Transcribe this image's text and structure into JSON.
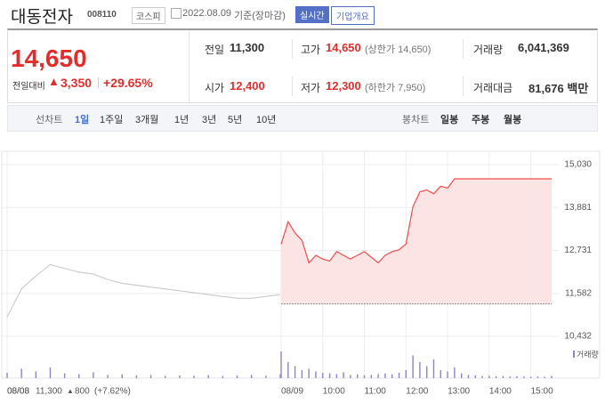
{
  "header": {
    "title": "대동전자",
    "code": "008110",
    "market": "코스피",
    "date": "2022.08.09",
    "basis": "기준(장마감)",
    "realtime": "실시간",
    "company": "기업개요"
  },
  "summary": {
    "price": "14,650",
    "change_label": "전일대비",
    "change": "3,350",
    "rate": "+29.65%",
    "stats": [
      {
        "label": "전일",
        "value": "11,300"
      },
      {
        "label": "고가",
        "value": "14,650",
        "note": "(상한가 14,650)"
      },
      {
        "label": "거래량",
        "value": "6,041,369"
      },
      {
        "label": "시가",
        "value": "12,400"
      },
      {
        "label": "저가",
        "value": "12,300",
        "note": "(하한가 7,950)"
      },
      {
        "label": "거래대금",
        "value": "81,676 백만"
      }
    ]
  },
  "tabs": {
    "line_label": "선차트",
    "line": [
      "1일",
      "1주일",
      "3개월",
      "1년",
      "3년",
      "5년",
      "10년"
    ],
    "candle_label": "봉차트",
    "candle": [
      "일봉",
      "주봉",
      "월봉"
    ]
  },
  "chart_data": {
    "type": "line",
    "categories": [
      "08/08",
      null,
      null,
      null,
      null,
      null,
      null,
      null,
      null,
      null,
      null,
      null,
      null,
      null,
      null,
      null,
      null,
      null,
      null,
      null,
      "08/09",
      null,
      null,
      null,
      null,
      null,
      "10:00",
      null,
      null,
      null,
      null,
      null,
      "11:00",
      null,
      null,
      null,
      null,
      null,
      "12:00",
      null,
      null,
      null,
      null,
      null,
      "13:00",
      null,
      null,
      null,
      null,
      null,
      "14:00",
      null,
      null,
      null,
      null,
      null,
      "15:00",
      null,
      null,
      null
    ],
    "series": [
      {
        "color": "#c4c4c4",
        "values": [
          10950,
          11700,
          12050,
          12350,
          12250,
          12150,
          12100,
          11950,
          11850,
          11800,
          11750,
          11700,
          11650,
          11600,
          11550,
          11500,
          11450,
          11450,
          11500,
          11550,
          null,
          null,
          null,
          null,
          null,
          null,
          null,
          null,
          null,
          null,
          null,
          null,
          null,
          null,
          null,
          null,
          null,
          null,
          null,
          null,
          null,
          null,
          null,
          null,
          null,
          null,
          null,
          null,
          null,
          null,
          null,
          null,
          null,
          null,
          null,
          null,
          null,
          null,
          null,
          null
        ]
      },
      {
        "color": "#f04c4c",
        "values": [
          null,
          null,
          null,
          null,
          null,
          null,
          null,
          null,
          null,
          null,
          null,
          null,
          null,
          null,
          null,
          null,
          null,
          null,
          null,
          null,
          12900,
          13500,
          13200,
          13000,
          12400,
          12600,
          12500,
          12450,
          12700,
          12600,
          12500,
          12600,
          12700,
          12550,
          12400,
          12600,
          12700,
          12750,
          12900,
          13900,
          14300,
          14350,
          14250,
          14450,
          14400,
          14650,
          14650,
          14650,
          14650,
          14650,
          14650,
          14650,
          14650,
          14650,
          14650,
          14650,
          14650,
          14650,
          14650,
          14650
        ]
      }
    ],
    "baseline": 11300,
    "ylim": [
      10432,
      15030
    ],
    "yticks": [
      {
        "value": 10432,
        "label": "10,432"
      },
      {
        "value": 11582,
        "label": "11,582"
      },
      {
        "value": 12731,
        "label": "12,731"
      },
      {
        "value": 13881,
        "label": "13,881"
      },
      {
        "value": 15030,
        "label": "15,030"
      }
    ],
    "volume": {
      "name": "거래량",
      "color": "#8e83c9",
      "ylim": [
        0,
        100
      ],
      "values": [
        20,
        35,
        25,
        40,
        18,
        15,
        22,
        12,
        14,
        10,
        12,
        8,
        10,
        9,
        11,
        8,
        10,
        12,
        9,
        14,
        100,
        60,
        45,
        30,
        35,
        25,
        20,
        18,
        15,
        22,
        12,
        14,
        10,
        12,
        15,
        18,
        14,
        20,
        30,
        85,
        60,
        45,
        70,
        30,
        25,
        40,
        18,
        12,
        10,
        8,
        9,
        7,
        8,
        6,
        7,
        6,
        5,
        6,
        5,
        8
      ]
    }
  },
  "chart_footer": {
    "date": "08/08",
    "price": "11,300",
    "change": "800",
    "rate": "(+7.62%)"
  }
}
